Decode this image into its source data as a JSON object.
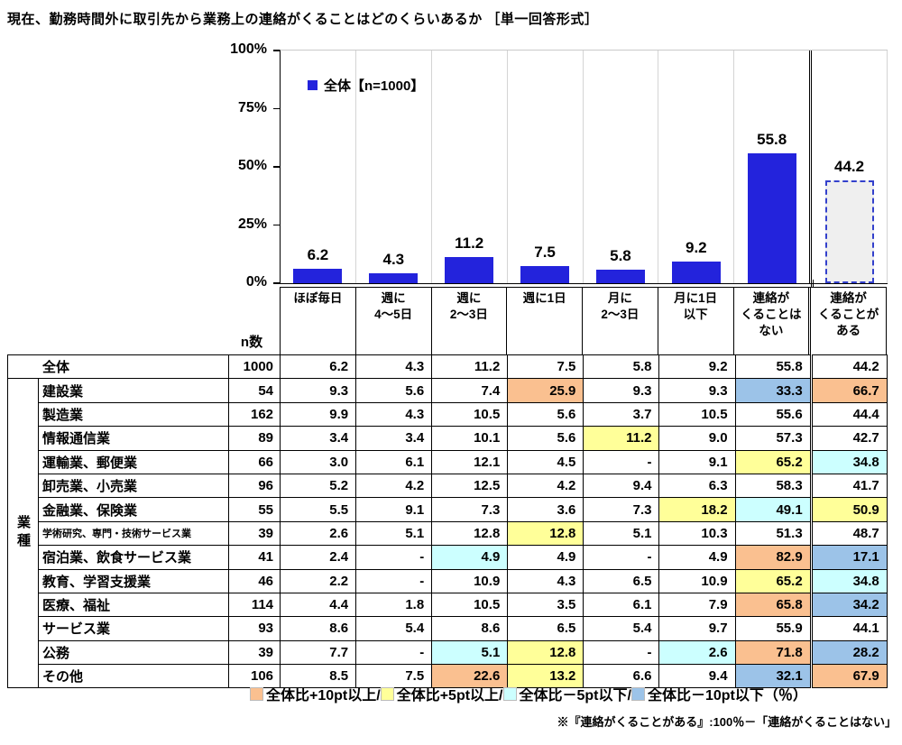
{
  "title": "現在、勤務時間外に取引先から業務上の連絡がくることはどのくらいあるか ［単一回答形式］",
  "chart_data": {
    "type": "bar",
    "legend": "全体【n=1000】",
    "categories": [
      "ほぼ毎日",
      "週に\n4～5日",
      "週に\n2～3日",
      "週に1日",
      "月に\n2～3日",
      "月に1日\n以下",
      "連絡が\nくることは\nない",
      "連絡が\nくることが\nある"
    ],
    "values": [
      6.2,
      4.3,
      11.2,
      7.5,
      5.8,
      9.2,
      55.8,
      44.2
    ],
    "bar_styles": [
      "solid",
      "solid",
      "solid",
      "solid",
      "solid",
      "solid",
      "solid",
      "dashed"
    ],
    "bar_color": "#2323DC",
    "ylim": [
      0,
      100
    ],
    "yticks": [
      100,
      75,
      50,
      25,
      0
    ],
    "grid": "vertical-separators"
  },
  "table": {
    "n_label": "n数",
    "group_label": "業種",
    "highlight_colors": {
      "o": "#FAC090",
      "y": "#FFFF99",
      "c": "#CCFFFF",
      "b": "#9CC3E8"
    },
    "rows": [
      {
        "label": "全体",
        "total": true,
        "n": "1000",
        "values": [
          "6.2",
          "4.3",
          "11.2",
          "7.5",
          "5.8",
          "9.2",
          "55.8",
          "44.2"
        ],
        "colors": [
          null,
          null,
          null,
          null,
          null,
          null,
          null,
          null
        ]
      },
      {
        "label": "建設業",
        "n": "54",
        "values": [
          "9.3",
          "5.6",
          "7.4",
          "25.9",
          "9.3",
          "9.3",
          "33.3",
          "66.7"
        ],
        "colors": [
          null,
          null,
          null,
          "o",
          null,
          null,
          "b",
          "o"
        ]
      },
      {
        "label": "製造業",
        "n": "162",
        "values": [
          "9.9",
          "4.3",
          "10.5",
          "5.6",
          "3.7",
          "10.5",
          "55.6",
          "44.4"
        ],
        "colors": [
          null,
          null,
          null,
          null,
          null,
          null,
          null,
          null
        ]
      },
      {
        "label": "情報通信業",
        "n": "89",
        "values": [
          "3.4",
          "3.4",
          "10.1",
          "5.6",
          "11.2",
          "9.0",
          "57.3",
          "42.7"
        ],
        "colors": [
          null,
          null,
          null,
          null,
          "y",
          null,
          null,
          null
        ]
      },
      {
        "label": "運輸業、郵便業",
        "n": "66",
        "values": [
          "3.0",
          "6.1",
          "12.1",
          "4.5",
          "-",
          "9.1",
          "65.2",
          "34.8"
        ],
        "colors": [
          null,
          null,
          null,
          null,
          null,
          null,
          "y",
          "c"
        ]
      },
      {
        "label": "卸売業、小売業",
        "n": "96",
        "values": [
          "5.2",
          "4.2",
          "12.5",
          "4.2",
          "9.4",
          "6.3",
          "58.3",
          "41.7"
        ],
        "colors": [
          null,
          null,
          null,
          null,
          null,
          null,
          null,
          null
        ]
      },
      {
        "label": "金融業、保険業",
        "n": "55",
        "values": [
          "5.5",
          "9.1",
          "7.3",
          "3.6",
          "7.3",
          "18.2",
          "49.1",
          "50.9"
        ],
        "colors": [
          null,
          null,
          null,
          null,
          null,
          "y",
          "c",
          "y"
        ]
      },
      {
        "label": "学術研究、専門・技術サービス業",
        "small": true,
        "n": "39",
        "values": [
          "2.6",
          "5.1",
          "12.8",
          "12.8",
          "5.1",
          "10.3",
          "51.3",
          "48.7"
        ],
        "colors": [
          null,
          null,
          null,
          "y",
          null,
          null,
          null,
          null
        ]
      },
      {
        "label": "宿泊業、飲食サービス業",
        "n": "41",
        "values": [
          "2.4",
          "-",
          "4.9",
          "4.9",
          "-",
          "4.9",
          "82.9",
          "17.1"
        ],
        "colors": [
          null,
          null,
          "c",
          null,
          null,
          null,
          "o",
          "b"
        ]
      },
      {
        "label": "教育、学習支援業",
        "n": "46",
        "values": [
          "2.2",
          "-",
          "10.9",
          "4.3",
          "6.5",
          "10.9",
          "65.2",
          "34.8"
        ],
        "colors": [
          null,
          null,
          null,
          null,
          null,
          null,
          "y",
          "c"
        ]
      },
      {
        "label": "医療、福祉",
        "n": "114",
        "values": [
          "4.4",
          "1.8",
          "10.5",
          "3.5",
          "6.1",
          "7.9",
          "65.8",
          "34.2"
        ],
        "colors": [
          null,
          null,
          null,
          null,
          null,
          null,
          "o",
          "b"
        ]
      },
      {
        "label": "サービス業",
        "n": "93",
        "values": [
          "8.6",
          "5.4",
          "8.6",
          "6.5",
          "5.4",
          "9.7",
          "55.9",
          "44.1"
        ],
        "colors": [
          null,
          null,
          null,
          null,
          null,
          null,
          null,
          null
        ]
      },
      {
        "label": "公務",
        "n": "39",
        "values": [
          "7.7",
          "-",
          "5.1",
          "12.8",
          "-",
          "2.6",
          "71.8",
          "28.2"
        ],
        "colors": [
          null,
          null,
          "c",
          "y",
          null,
          "c",
          "o",
          "b"
        ]
      },
      {
        "label": "その他",
        "n": "106",
        "values": [
          "8.5",
          "7.5",
          "22.6",
          "13.2",
          "6.6",
          "9.4",
          "32.1",
          "67.9"
        ],
        "colors": [
          null,
          null,
          "o",
          "y",
          null,
          null,
          "b",
          "o"
        ]
      }
    ]
  },
  "color_legend": {
    "items": [
      {
        "color": "#FAC090",
        "label": "全体比+10pt以上/"
      },
      {
        "color": "#FFFF99",
        "label": "全体比+5pt以上/"
      },
      {
        "color": "#CCFFFF",
        "label": "全体比－5pt以下/"
      },
      {
        "color": "#9CC3E8",
        "label": "全体比－10pt以下"
      }
    ],
    "suffix": "（％）"
  },
  "footnote": "※『連絡がくることがある』:100％－「連絡がくることはない」"
}
